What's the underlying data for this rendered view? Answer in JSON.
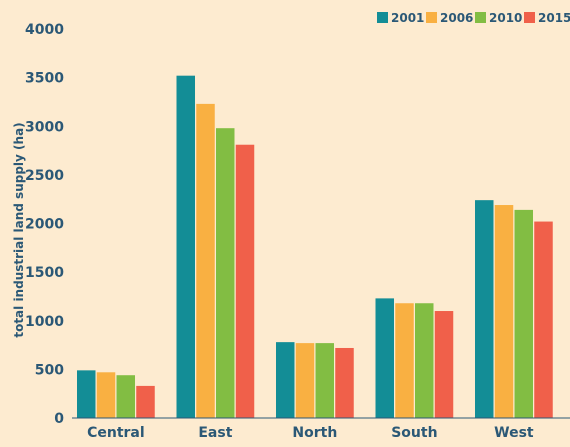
{
  "chart_data": {
    "type": "bar",
    "title": "",
    "xlabel": "",
    "ylabel": "total industrial land supply (ha)",
    "ylim": [
      0,
      4000
    ],
    "yticks": [
      0,
      500,
      1000,
      1500,
      2000,
      2500,
      3000,
      3500,
      4000
    ],
    "grid": false,
    "legend_position": "top-right",
    "categories": [
      "Central",
      "East",
      "North",
      "South",
      "West"
    ],
    "series": [
      {
        "name": "2001",
        "color": "#138d96",
        "values": [
          490,
          3520,
          780,
          1230,
          2240
        ]
      },
      {
        "name": "2006",
        "color": "#f9b042",
        "values": [
          470,
          3230,
          770,
          1180,
          2190
        ]
      },
      {
        "name": "2010",
        "color": "#82bd43",
        "values": [
          440,
          2980,
          770,
          1180,
          2140
        ]
      },
      {
        "name": "2015",
        "color": "#f0604a",
        "values": [
          330,
          2810,
          720,
          1100,
          2020
        ]
      }
    ]
  }
}
